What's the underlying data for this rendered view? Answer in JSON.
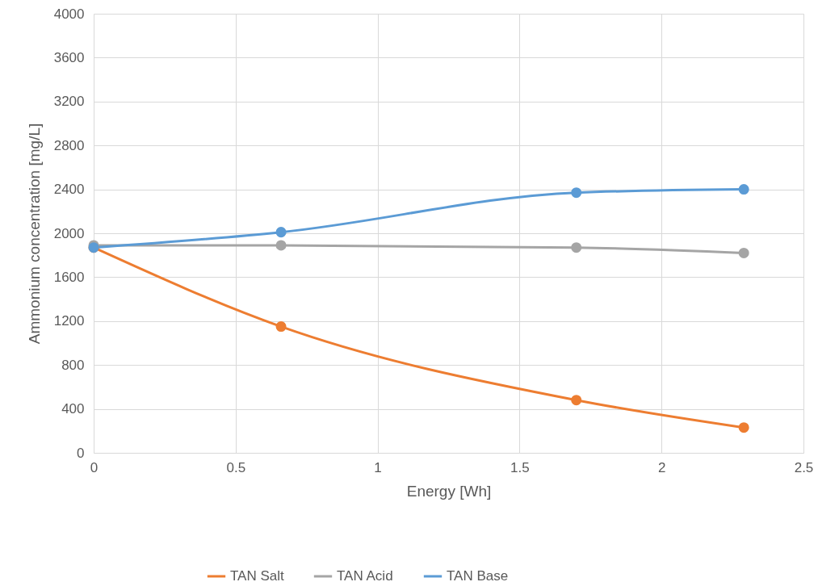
{
  "chart_data": {
    "type": "line",
    "xlabel": "Energy [Wh]",
    "ylabel": "Ammonium concentration [mg/L]",
    "xlim": [
      0,
      2.5
    ],
    "xticks": [
      0,
      0.5,
      1,
      1.5,
      2,
      2.5
    ],
    "ylim": [
      0,
      4000
    ],
    "yticks": [
      0,
      400,
      800,
      1200,
      1600,
      2000,
      2400,
      2800,
      3200,
      3600,
      4000
    ],
    "grid": true,
    "legend": "bottom",
    "marker": "circle",
    "line_style": "solid",
    "x": [
      0,
      0.66,
      1.7,
      2.29
    ],
    "series": [
      {
        "name": "TAN Salt",
        "color": "#ed7d31",
        "values": [
          1870,
          1150,
          480,
          230
        ]
      },
      {
        "name": "TAN Acid",
        "color": "#a5a5a5",
        "values": [
          1890,
          1890,
          1870,
          1820
        ]
      },
      {
        "name": "TAN Base",
        "color": "#5b9bd5",
        "values": [
          1870,
          2010,
          2370,
          2400
        ]
      }
    ]
  }
}
